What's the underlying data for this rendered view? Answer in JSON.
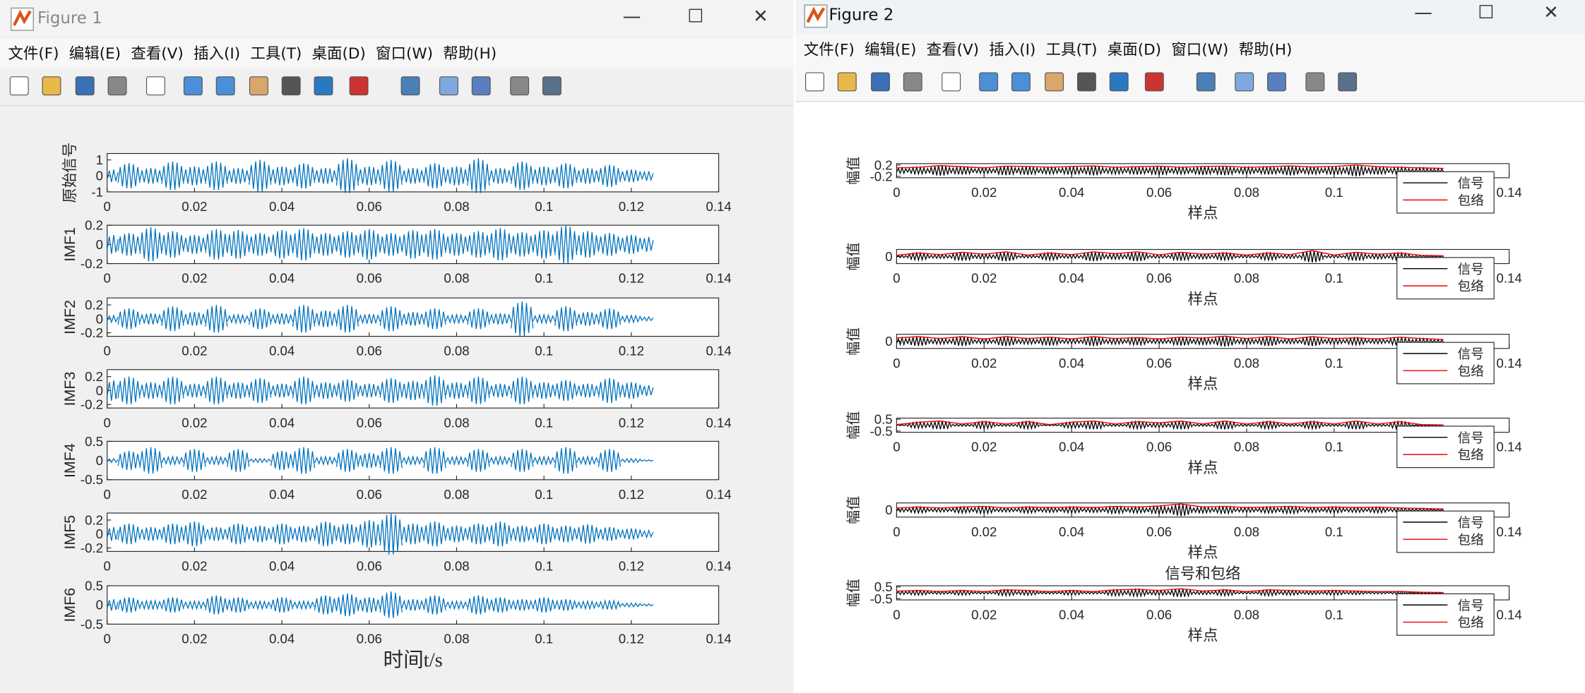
{
  "figure1": {
    "title": "Figure 1",
    "menu": [
      "文件(F)",
      "编辑(E)",
      "查看(V)",
      "插入(I)",
      "工具(T)",
      "桌面(D)",
      "窗口(W)",
      "帮助(H)"
    ],
    "xlim": [
      0,
      0.14
    ],
    "xticks": [
      0,
      0.02,
      0.04,
      0.06,
      0.08,
      0.1,
      0.12,
      0.14
    ],
    "xlabel": "时间t/s",
    "t": [
      0,
      0.005,
      0.01,
      0.015,
      0.02,
      0.025,
      0.03,
      0.035,
      0.04,
      0.045,
      0.05,
      0.055,
      0.06,
      0.065,
      0.07,
      0.075,
      0.08,
      0.085,
      0.09,
      0.095,
      0.1,
      0.105,
      0.11,
      0.115,
      0.12,
      0.125
    ],
    "plots": [
      {
        "ylabel": "原始信号",
        "ylim": [
          -1,
          1.4
        ],
        "yticks": [
          1,
          0,
          -1
        ],
        "envelope": [
          0.4,
          0.8,
          0.5,
          0.9,
          0.6,
          0.9,
          0.5,
          1.0,
          0.6,
          0.8,
          0.5,
          1.1,
          0.6,
          1.0,
          0.5,
          0.8,
          0.6,
          1.1,
          0.5,
          0.9,
          0.6,
          0.8,
          0.5,
          0.7,
          0.4,
          0.3
        ]
      },
      {
        "ylabel": "IMF1",
        "ylim": [
          -0.2,
          0.2
        ],
        "yticks": [
          0.2,
          0,
          -0.2
        ],
        "envelope": [
          0.1,
          0.12,
          0.18,
          0.14,
          0.1,
          0.16,
          0.15,
          0.12,
          0.15,
          0.17,
          0.12,
          0.14,
          0.16,
          0.12,
          0.15,
          0.16,
          0.12,
          0.14,
          0.17,
          0.13,
          0.15,
          0.2,
          0.14,
          0.12,
          0.1,
          0.08
        ]
      },
      {
        "ylabel": "IMF2",
        "ylim": [
          -0.25,
          0.3
        ],
        "yticks": [
          0.2,
          0,
          -0.2
        ],
        "envelope": [
          0.05,
          0.15,
          0.08,
          0.18,
          0.1,
          0.2,
          0.06,
          0.15,
          0.08,
          0.2,
          0.12,
          0.2,
          0.07,
          0.18,
          0.1,
          0.15,
          0.06,
          0.15,
          0.08,
          0.25,
          0.06,
          0.18,
          0.1,
          0.15,
          0.05,
          0.03
        ]
      },
      {
        "ylabel": "IMF3",
        "ylim": [
          -0.25,
          0.3
        ],
        "yticks": [
          0.2,
          0,
          -0.2
        ],
        "envelope": [
          0.15,
          0.2,
          0.12,
          0.2,
          0.1,
          0.2,
          0.12,
          0.18,
          0.1,
          0.2,
          0.12,
          0.16,
          0.1,
          0.18,
          0.14,
          0.22,
          0.12,
          0.2,
          0.1,
          0.2,
          0.12,
          0.15,
          0.1,
          0.18,
          0.12,
          0.08
        ]
      },
      {
        "ylabel": "IMF4",
        "ylim": [
          -0.5,
          0.5
        ],
        "yticks": [
          0.5,
          0,
          -0.5
        ],
        "envelope": [
          0.05,
          0.25,
          0.35,
          0.1,
          0.3,
          0.1,
          0.3,
          0.05,
          0.25,
          0.35,
          0.1,
          0.3,
          0.2,
          0.35,
          0.1,
          0.35,
          0.1,
          0.3,
          0.1,
          0.3,
          0.1,
          0.35,
          0.1,
          0.3,
          0.05,
          0.02
        ]
      },
      {
        "ylabel": "IMF5",
        "ylim": [
          -0.25,
          0.3
        ],
        "yticks": [
          0.2,
          0,
          -0.2
        ],
        "envelope": [
          0.1,
          0.15,
          0.1,
          0.15,
          0.18,
          0.1,
          0.15,
          0.12,
          0.15,
          0.12,
          0.18,
          0.15,
          0.2,
          0.3,
          0.15,
          0.18,
          0.12,
          0.15,
          0.18,
          0.12,
          0.15,
          0.12,
          0.14,
          0.1,
          0.08,
          0.05
        ]
      },
      {
        "ylabel": "IMF6",
        "ylim": [
          -0.5,
          0.5
        ],
        "yticks": [
          0.5,
          0,
          -0.5
        ],
        "envelope": [
          0.15,
          0.2,
          0.12,
          0.2,
          0.1,
          0.25,
          0.2,
          0.1,
          0.2,
          0.1,
          0.25,
          0.3,
          0.2,
          0.35,
          0.15,
          0.25,
          0.1,
          0.25,
          0.2,
          0.15,
          0.2,
          0.15,
          0.1,
          0.12,
          0.05,
          0.03
        ]
      }
    ]
  },
  "figure2": {
    "title": "Figure 2",
    "menu": [
      "文件(F)",
      "编辑(E)",
      "查看(V)",
      "插入(I)",
      "工具(T)",
      "桌面(D)",
      "窗口(W)",
      "帮助(H)"
    ],
    "xlim": [
      0,
      0.14
    ],
    "xticks": [
      0,
      0.02,
      0.04,
      0.06,
      0.08,
      0.1,
      0.12,
      0.14
    ],
    "xlabel": "样点",
    "ylabel": "幅值",
    "legend": [
      "信号",
      "包络"
    ],
    "plot_title": "信号和包络",
    "t": [
      0,
      0.005,
      0.01,
      0.015,
      0.02,
      0.025,
      0.03,
      0.035,
      0.04,
      0.045,
      0.05,
      0.055,
      0.06,
      0.065,
      0.07,
      0.075,
      0.08,
      0.085,
      0.09,
      0.095,
      0.1,
      0.105,
      0.11,
      0.115,
      0.12,
      0.125
    ],
    "plots": [
      {
        "ylim": [
          -0.25,
          0.25
        ],
        "yticks": [
          0.2,
          -0.2
        ],
        "envelope": [
          0.1,
          0.12,
          0.18,
          0.14,
          0.1,
          0.16,
          0.15,
          0.12,
          0.15,
          0.17,
          0.12,
          0.14,
          0.16,
          0.12,
          0.15,
          0.16,
          0.12,
          0.14,
          0.17,
          0.13,
          0.15,
          0.2,
          0.14,
          0.12,
          0.1,
          0.08
        ]
      },
      {
        "ylim": [
          -0.3,
          0.3
        ],
        "yticks": [
          0
        ],
        "envelope": [
          0.05,
          0.15,
          0.08,
          0.18,
          0.1,
          0.2,
          0.06,
          0.15,
          0.08,
          0.2,
          0.12,
          0.2,
          0.07,
          0.18,
          0.1,
          0.15,
          0.06,
          0.15,
          0.08,
          0.25,
          0.06,
          0.18,
          0.1,
          0.15,
          0.05,
          0.03
        ]
      },
      {
        "ylim": [
          -0.3,
          0.3
        ],
        "yticks": [
          0
        ],
        "envelope": [
          0.15,
          0.2,
          0.12,
          0.2,
          0.1,
          0.2,
          0.12,
          0.18,
          0.1,
          0.2,
          0.12,
          0.16,
          0.1,
          0.18,
          0.14,
          0.22,
          0.12,
          0.2,
          0.1,
          0.2,
          0.12,
          0.15,
          0.1,
          0.18,
          0.12,
          0.08
        ]
      },
      {
        "ylim": [
          -0.6,
          0.6
        ],
        "yticks": [
          0.5,
          -0.5
        ],
        "envelope": [
          0.05,
          0.25,
          0.35,
          0.1,
          0.3,
          0.1,
          0.3,
          0.05,
          0.25,
          0.35,
          0.1,
          0.3,
          0.2,
          0.35,
          0.1,
          0.35,
          0.1,
          0.3,
          0.1,
          0.3,
          0.1,
          0.35,
          0.1,
          0.3,
          0.05,
          0.02
        ]
      },
      {
        "ylim": [
          -0.35,
          0.35
        ],
        "yticks": [
          0
        ],
        "envelope": [
          0.1,
          0.15,
          0.1,
          0.15,
          0.18,
          0.1,
          0.15,
          0.12,
          0.15,
          0.12,
          0.18,
          0.15,
          0.2,
          0.3,
          0.15,
          0.18,
          0.12,
          0.15,
          0.18,
          0.12,
          0.15,
          0.12,
          0.14,
          0.1,
          0.08,
          0.05
        ]
      },
      {
        "ylim": [
          -0.6,
          0.6
        ],
        "yticks": [
          0.5,
          -0.5
        ],
        "envelope": [
          0.15,
          0.2,
          0.12,
          0.2,
          0.1,
          0.25,
          0.2,
          0.1,
          0.2,
          0.1,
          0.25,
          0.3,
          0.2,
          0.35,
          0.15,
          0.25,
          0.1,
          0.25,
          0.2,
          0.15,
          0.2,
          0.15,
          0.1,
          0.12,
          0.05,
          0.03
        ]
      }
    ]
  }
}
